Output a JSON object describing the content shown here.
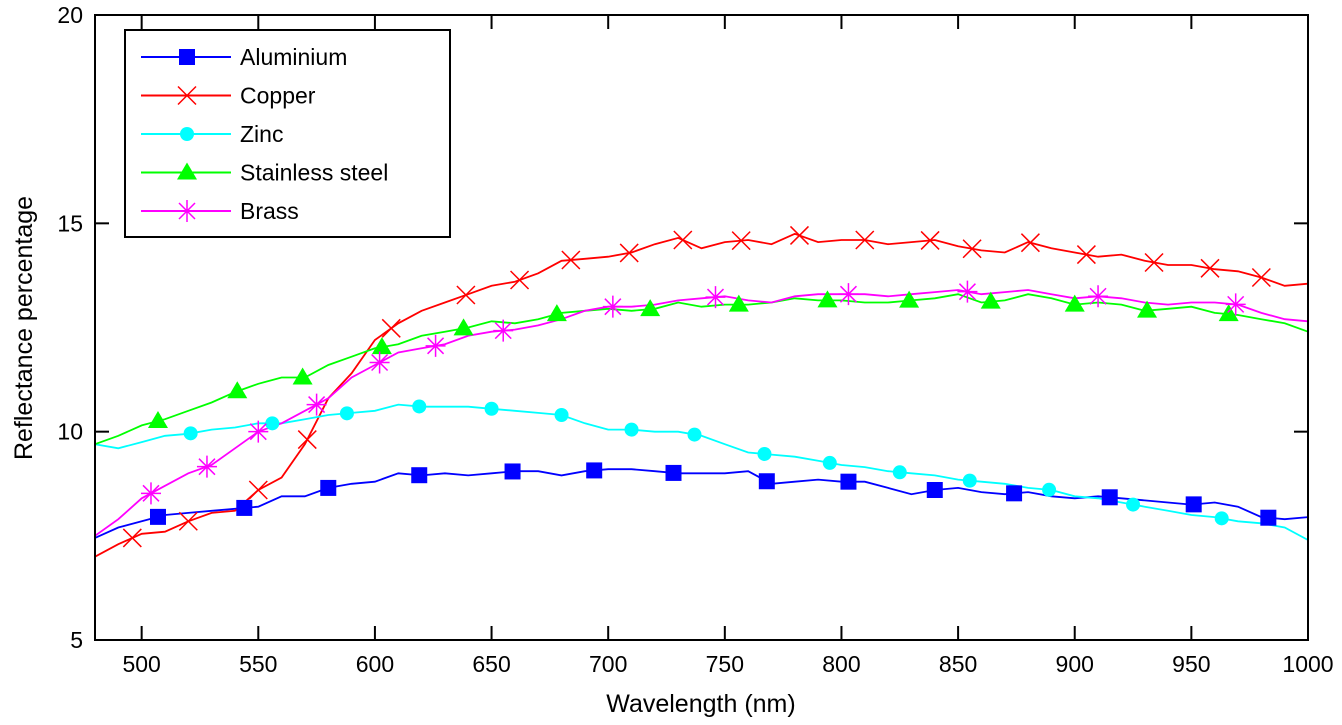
{
  "chart_data": {
    "type": "line",
    "title": "",
    "xlabel": "Wavelength (nm)",
    "ylabel": "Reflectance percentage",
    "xlim": [
      480,
      1000
    ],
    "ylim": [
      5,
      20
    ],
    "xticks": [
      500,
      550,
      600,
      650,
      700,
      750,
      800,
      850,
      900,
      950,
      1000
    ],
    "yticks": [
      5,
      10,
      15,
      20
    ],
    "grid": false,
    "legend_position": "top-left",
    "x": [
      480,
      490,
      500,
      510,
      520,
      530,
      540,
      550,
      560,
      570,
      580,
      590,
      600,
      610,
      620,
      630,
      640,
      650,
      660,
      670,
      680,
      690,
      700,
      710,
      720,
      730,
      740,
      750,
      760,
      770,
      780,
      790,
      800,
      810,
      820,
      830,
      840,
      850,
      860,
      870,
      880,
      890,
      900,
      910,
      920,
      930,
      940,
      950,
      960,
      970,
      980,
      990,
      1000
    ],
    "series": [
      {
        "name": "Aluminium",
        "color": "#0000ff",
        "marker": "square",
        "values": [
          7.45,
          7.7,
          7.85,
          8.0,
          8.05,
          8.1,
          8.15,
          8.2,
          8.45,
          8.45,
          8.65,
          8.75,
          8.8,
          9.0,
          8.95,
          9.0,
          8.95,
          9.0,
          9.05,
          9.05,
          8.95,
          9.05,
          9.1,
          9.1,
          9.05,
          9.0,
          9.0,
          9.0,
          9.05,
          8.75,
          8.8,
          8.85,
          8.8,
          8.8,
          8.65,
          8.5,
          8.6,
          8.65,
          8.55,
          8.5,
          8.55,
          8.45,
          8.4,
          8.45,
          8.4,
          8.35,
          8.3,
          8.25,
          8.3,
          8.2,
          7.95,
          7.9,
          7.95
        ]
      },
      {
        "name": "Copper",
        "color": "#ff0000",
        "marker": "x",
        "values": [
          7.0,
          7.3,
          7.55,
          7.6,
          7.85,
          8.05,
          8.1,
          8.6,
          8.9,
          9.7,
          10.8,
          11.4,
          12.2,
          12.6,
          12.9,
          13.1,
          13.3,
          13.5,
          13.6,
          13.8,
          14.1,
          14.15,
          14.2,
          14.3,
          14.5,
          14.65,
          14.4,
          14.55,
          14.6,
          14.5,
          14.75,
          14.55,
          14.6,
          14.6,
          14.5,
          14.55,
          14.6,
          14.45,
          14.35,
          14.3,
          14.55,
          14.4,
          14.3,
          14.2,
          14.25,
          14.1,
          14.0,
          14.0,
          13.9,
          13.85,
          13.7,
          13.5,
          13.55
        ]
      },
      {
        "name": "Zinc",
        "color": "#00ffff",
        "marker": "circle",
        "values": [
          9.7,
          9.6,
          9.75,
          9.9,
          9.95,
          10.05,
          10.1,
          10.2,
          10.2,
          10.3,
          10.4,
          10.45,
          10.5,
          10.65,
          10.6,
          10.6,
          10.6,
          10.55,
          10.5,
          10.45,
          10.4,
          10.2,
          10.05,
          10.05,
          10.0,
          10.0,
          9.9,
          9.7,
          9.5,
          9.45,
          9.4,
          9.3,
          9.2,
          9.15,
          9.05,
          9.0,
          8.95,
          8.85,
          8.8,
          8.75,
          8.65,
          8.6,
          8.45,
          8.4,
          8.3,
          8.2,
          8.1,
          8.0,
          7.95,
          7.85,
          7.8,
          7.7,
          7.4
        ]
      },
      {
        "name": "Stainless steel",
        "color": "#00ff00",
        "marker": "triangle",
        "values": [
          9.7,
          9.9,
          10.15,
          10.3,
          10.5,
          10.7,
          10.95,
          11.15,
          11.3,
          11.3,
          11.6,
          11.8,
          12.0,
          12.1,
          12.3,
          12.4,
          12.5,
          12.65,
          12.6,
          12.7,
          12.85,
          12.9,
          12.95,
          12.9,
          12.95,
          13.1,
          13.0,
          13.05,
          13.05,
          13.1,
          13.2,
          13.15,
          13.15,
          13.1,
          13.1,
          13.15,
          13.2,
          13.3,
          13.1,
          13.15,
          13.3,
          13.2,
          13.05,
          13.1,
          13.05,
          12.9,
          12.95,
          13.0,
          12.85,
          12.8,
          12.7,
          12.6,
          12.4
        ]
      },
      {
        "name": "Brass",
        "color": "#ff00ff",
        "marker": "asterisk",
        "values": [
          7.5,
          7.9,
          8.4,
          8.7,
          9.0,
          9.2,
          9.6,
          10.0,
          10.2,
          10.5,
          10.8,
          11.3,
          11.6,
          11.9,
          12.0,
          12.1,
          12.3,
          12.4,
          12.45,
          12.55,
          12.7,
          12.9,
          13.0,
          13.0,
          13.05,
          13.15,
          13.2,
          13.25,
          13.15,
          13.1,
          13.25,
          13.3,
          13.3,
          13.3,
          13.25,
          13.3,
          13.35,
          13.4,
          13.3,
          13.35,
          13.4,
          13.3,
          13.2,
          13.25,
          13.2,
          13.1,
          13.05,
          13.1,
          13.1,
          13.05,
          12.85,
          12.7,
          12.65
        ]
      }
    ],
    "markers_x": {
      "Aluminium": [
        507,
        544,
        580,
        619,
        659,
        694,
        728,
        768,
        803,
        840,
        874,
        915,
        951,
        983
      ],
      "Copper": [
        496,
        520,
        550,
        571,
        607,
        639,
        662,
        684,
        709,
        732,
        757,
        782,
        810,
        838,
        856,
        881,
        905,
        934,
        958,
        980
      ],
      "Zinc": [
        521,
        556,
        588,
        619,
        650,
        680,
        710,
        737,
        767,
        795,
        825,
        855,
        889,
        925,
        963
      ],
      "Stainless steel": [
        507,
        541,
        569,
        603,
        638,
        678,
        718,
        756,
        794,
        829,
        864,
        900,
        931,
        966
      ],
      "Brass": [
        504,
        528,
        550,
        575,
        602,
        626,
        655,
        702,
        746,
        803,
        854,
        910,
        969
      ]
    }
  }
}
